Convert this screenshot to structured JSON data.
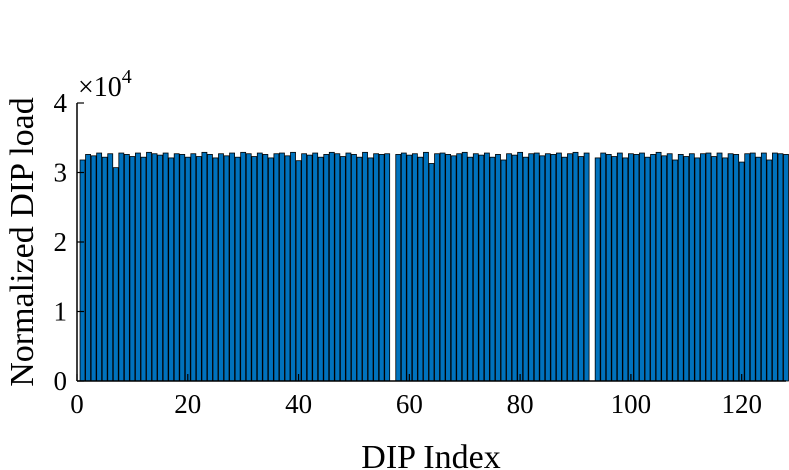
{
  "chart_data": {
    "type": "bar",
    "title": "",
    "xlabel": "DIP Index",
    "ylabel": "Normalized DIP load",
    "x_range": [
      0,
      128
    ],
    "xlim": [
      0,
      128
    ],
    "ylim": [
      0,
      40000
    ],
    "x_ticks": [
      "0",
      "20",
      "40",
      "60",
      "80",
      "100",
      "120"
    ],
    "y_ticks": [
      "0",
      "1",
      "2",
      "3",
      "4"
    ],
    "y_multiplier": {
      "base": "×10",
      "exponent": "4"
    },
    "bar_color": "#0072BD",
    "edge_color": "#000000",
    "grid": false,
    "x": [
      1,
      2,
      3,
      4,
      5,
      6,
      7,
      8,
      9,
      10,
      11,
      12,
      13,
      14,
      15,
      16,
      17,
      18,
      19,
      20,
      21,
      22,
      23,
      24,
      25,
      26,
      27,
      28,
      29,
      30,
      31,
      32,
      33,
      34,
      35,
      36,
      37,
      38,
      39,
      40,
      41,
      42,
      43,
      44,
      45,
      46,
      47,
      48,
      49,
      50,
      51,
      52,
      53,
      54,
      55,
      56,
      57,
      58,
      59,
      60,
      61,
      62,
      63,
      64,
      65,
      66,
      67,
      68,
      69,
      70,
      71,
      72,
      73,
      74,
      75,
      76,
      77,
      78,
      79,
      80,
      81,
      82,
      83,
      84,
      85,
      86,
      87,
      88,
      89,
      90,
      91,
      92,
      93,
      94,
      95,
      96,
      97,
      98,
      99,
      100,
      101,
      102,
      103,
      104,
      105,
      106,
      107,
      108,
      109,
      110,
      111,
      112,
      113,
      114,
      115,
      116,
      117,
      118,
      119,
      120,
      121,
      122,
      123,
      124,
      125,
      126,
      127,
      128
    ],
    "values": [
      31800,
      32600,
      32400,
      32800,
      32200,
      32700,
      30700,
      32800,
      32600,
      32300,
      32800,
      32200,
      32900,
      32700,
      32500,
      32800,
      32100,
      32700,
      32600,
      32200,
      32700,
      32300,
      32900,
      32600,
      32100,
      32700,
      32400,
      32800,
      32200,
      32900,
      32700,
      32300,
      32800,
      32600,
      32100,
      32700,
      32800,
      32400,
      32900,
      31700,
      32700,
      32500,
      32800,
      32200,
      32600,
      32900,
      32700,
      32300,
      32800,
      32600,
      32200,
      32900,
      32100,
      32700,
      32600,
      32700,
      0,
      32600,
      32800,
      32500,
      32700,
      32200,
      32900,
      31300,
      32700,
      32800,
      32600,
      32400,
      32700,
      32900,
      32200,
      32700,
      32500,
      32800,
      32200,
      32600,
      31800,
      32700,
      32500,
      32900,
      32200,
      32700,
      32800,
      32400,
      32700,
      32600,
      32800,
      32200,
      32700,
      32900,
      32300,
      32800,
      0,
      32100,
      32800,
      32600,
      32300,
      32800,
      32100,
      32700,
      32600,
      32800,
      32200,
      32600,
      32900,
      32400,
      32700,
      31800,
      32600,
      32300,
      32700,
      32100,
      32700,
      32800,
      32300,
      32800,
      32100,
      32700,
      32600,
      31500,
      32700,
      32800,
      32200,
      32800,
      31800,
      32800,
      32700,
      32600
    ]
  }
}
